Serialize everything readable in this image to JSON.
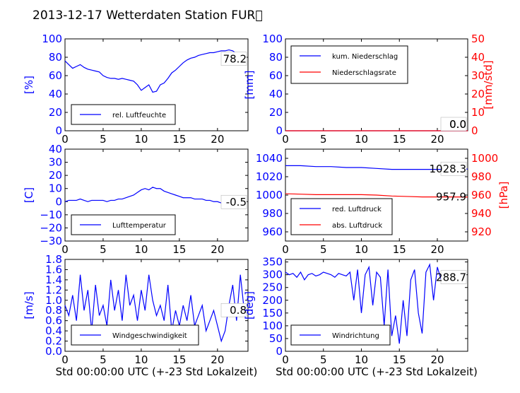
{
  "title": "2013-12-17 Wetterdaten Station FUR\u0000",
  "colors": {
    "blue": "#0000ff",
    "red": "#ff0000",
    "axis": "#000000",
    "frame": "#000000"
  },
  "chart_data": [
    {
      "type": "line",
      "id": "humidity",
      "xlim": [
        0,
        24
      ],
      "xticks": [
        "0",
        "5",
        "10",
        "15",
        "20"
      ],
      "ylim": [
        0,
        100
      ],
      "yticks": [
        "0",
        "20",
        "40",
        "60",
        "80",
        "100"
      ],
      "ylabel": "[%]",
      "xlabel": "",
      "last_value_label": "78.2",
      "legend": {
        "placement": "lower-left"
      },
      "series": [
        {
          "name": "rel. Luftfeuchte",
          "color": "#0000ff",
          "x": [
            0,
            0.5,
            1,
            1.5,
            2,
            2.5,
            3,
            3.5,
            4,
            4.5,
            5,
            5.5,
            6,
            6.5,
            7,
            7.5,
            8,
            8.5,
            9,
            9.5,
            10,
            10.5,
            11,
            11.5,
            12,
            12.5,
            13,
            13.5,
            14,
            14.5,
            15,
            15.5,
            16,
            16.5,
            17,
            17.5,
            18,
            18.5,
            19,
            19.5,
            20,
            20.5,
            21,
            21.5,
            22,
            22.5,
            23,
            23.5
          ],
          "values": [
            76,
            72,
            68,
            70,
            72,
            69,
            67,
            66,
            65,
            64,
            60,
            58,
            57,
            57,
            56,
            57,
            56,
            55,
            54,
            50,
            44,
            47,
            50,
            42,
            43,
            50,
            52,
            57,
            63,
            66,
            70,
            74,
            77,
            79,
            80,
            82,
            83,
            84,
            85,
            85,
            86,
            87,
            87,
            88,
            87,
            84,
            80,
            78
          ]
        }
      ]
    },
    {
      "type": "line",
      "id": "precipitation",
      "xlim": [
        0,
        24
      ],
      "xticks": [
        "0",
        "5",
        "10",
        "15",
        "20"
      ],
      "ylim": [
        0,
        100
      ],
      "yticks": [
        "0",
        "20",
        "40",
        "60",
        "80",
        "100"
      ],
      "ylabel": "[mm]",
      "y2lim": [
        0,
        50
      ],
      "y2ticks": [
        "0",
        "10",
        "20",
        "30",
        "40",
        "50"
      ],
      "y2label": "[mm/std]",
      "last_value_label": "0.0",
      "last_value_label2": "0.0",
      "legend": {
        "placement": "upper-left"
      },
      "series": [
        {
          "name": "kum. Niederschlag",
          "color": "#0000ff",
          "axis": "left",
          "x": [
            0,
            24
          ],
          "values": [
            0,
            0
          ]
        },
        {
          "name": "Niederschlagsrate",
          "color": "#ff0000",
          "axis": "right",
          "x": [
            0,
            24
          ],
          "values": [
            0,
            0
          ]
        }
      ]
    },
    {
      "type": "line",
      "id": "temperature",
      "xlim": [
        0,
        24
      ],
      "xticks": [
        "0",
        "5",
        "10",
        "15",
        "20"
      ],
      "ylim": [
        -30,
        40
      ],
      "yticks": [
        "−30",
        "−20",
        "−10",
        "0",
        "10",
        "20",
        "30",
        "40"
      ],
      "ylabel": "[C]",
      "last_value_label": "-0.5",
      "legend": {
        "placement": "lower-left"
      },
      "series": [
        {
          "name": "Lufttemperatur",
          "color": "#0000ff",
          "x": [
            0,
            0.5,
            1,
            1.5,
            2,
            2.5,
            3,
            3.5,
            4,
            4.5,
            5,
            5.5,
            6,
            6.5,
            7,
            7.5,
            8,
            8.5,
            9,
            9.5,
            10,
            10.5,
            11,
            11.5,
            12,
            12.5,
            13,
            13.5,
            14,
            14.5,
            15,
            15.5,
            16,
            16.5,
            17,
            17.5,
            18,
            18.5,
            19,
            19.5,
            20,
            20.5,
            21,
            21.5,
            22,
            22.5,
            23,
            23.5
          ],
          "values": [
            0,
            1,
            1,
            1,
            2,
            1,
            0,
            1,
            1,
            1,
            1,
            0,
            1,
            1,
            2,
            2,
            3,
            4,
            5,
            7,
            9,
            10,
            9,
            11,
            10,
            10,
            8,
            7,
            6,
            5,
            4,
            3,
            3,
            3,
            2,
            2,
            2,
            1,
            1,
            0,
            0,
            -1,
            -1,
            -1,
            -1,
            -1,
            -1,
            -0.5
          ]
        }
      ]
    },
    {
      "type": "line",
      "id": "pressure",
      "xlim": [
        0,
        24
      ],
      "xticks": [
        "0",
        "5",
        "10",
        "15",
        "20"
      ],
      "ylim": [
        950,
        1050
      ],
      "yticks": [
        "960",
        "980",
        "1000",
        "1020",
        "1040"
      ],
      "y2lim": [
        910,
        1010
      ],
      "y2ticks": [
        "920",
        "940",
        "960",
        "980",
        "1000"
      ],
      "y2label": "[hPa]",
      "last_value_label": "1028.3",
      "last_value_label2": "957.9",
      "legend": {
        "placement": "lower-left"
      },
      "series": [
        {
          "name": "red. Luftdruck",
          "color": "#0000ff",
          "axis": "left",
          "x": [
            0,
            2,
            4,
            6,
            8,
            10,
            12,
            14,
            16,
            18,
            20,
            22,
            24
          ],
          "values": [
            1032,
            1032,
            1031,
            1031,
            1030,
            1030,
            1029,
            1028,
            1028,
            1028,
            1028,
            1028,
            1028.3
          ]
        },
        {
          "name": "abs. Luftdruck",
          "color": "#ff0000",
          "axis": "right",
          "x": [
            0,
            2,
            4,
            6,
            8,
            10,
            12,
            14,
            16,
            18,
            20,
            22,
            24
          ],
          "values": [
            961.5,
            961,
            960.5,
            960.5,
            960.5,
            960.5,
            960,
            959,
            958.5,
            958,
            958,
            958,
            957.9
          ]
        }
      ]
    },
    {
      "type": "line",
      "id": "wind-speed",
      "xlim": [
        0,
        24
      ],
      "xticks": [
        "0",
        "5",
        "10",
        "15",
        "20"
      ],
      "ylim": [
        0,
        1.8
      ],
      "yticks": [
        "0.0",
        "0.2",
        "0.4",
        "0.6",
        "0.8",
        "1.0",
        "1.2",
        "1.4",
        "1.6",
        "1.8"
      ],
      "ylabel": "[m/s]",
      "xlabel": "Std 00:00:00 UTC (+-23 Std Lokalzeit)",
      "last_value_label": "0.8",
      "legend": {
        "placement": "lower-left"
      },
      "series": [
        {
          "name": "Windgeschwindigkeit",
          "color": "#0000ff",
          "x": [
            0,
            0.5,
            1,
            1.5,
            2,
            2.5,
            3,
            3.5,
            4,
            4.5,
            5,
            5.5,
            6,
            6.5,
            7,
            7.5,
            8,
            8.5,
            9,
            9.5,
            10,
            10.5,
            11,
            11.5,
            12,
            12.5,
            13,
            13.5,
            14,
            14.5,
            15,
            15.5,
            16,
            16.5,
            17,
            17.5,
            18,
            18.5,
            19,
            19.5,
            20,
            20.5,
            21,
            21.5,
            22,
            22.5,
            23,
            23.5
          ],
          "values": [
            0.9,
            0.7,
            1.1,
            0.6,
            1.5,
            0.8,
            1.2,
            0.4,
            1.3,
            0.7,
            0.9,
            0.5,
            1.4,
            0.8,
            1.2,
            0.6,
            1.5,
            0.9,
            1.1,
            0.6,
            1.2,
            0.8,
            1.5,
            1.0,
            0.7,
            0.9,
            0.6,
            1.3,
            0.4,
            0.8,
            0.5,
            0.9,
            0.6,
            1.1,
            0.5,
            0.7,
            0.9,
            0.4,
            0.6,
            0.8,
            0.5,
            0.2,
            0.4,
            0.9,
            1.3,
            0.6,
            1.5,
            0.8
          ]
        }
      ]
    },
    {
      "type": "line",
      "id": "wind-direction",
      "xlim": [
        0,
        24
      ],
      "xticks": [
        "0",
        "5",
        "10",
        "15",
        "20"
      ],
      "ylim": [
        0,
        360
      ],
      "yticks": [
        "0",
        "50",
        "100",
        "150",
        "200",
        "250",
        "300",
        "350"
      ],
      "ylabel": "[deg]",
      "xlabel": "Std 00:00:00 UTC (+-23 Std Lokalzeit)",
      "last_value_label": "288.7",
      "legend": {
        "placement": "lower-left"
      },
      "series": [
        {
          "name": "Windrichtung",
          "color": "#0000ff",
          "x": [
            0,
            0.5,
            1,
            1.5,
            2,
            2.5,
            3,
            3.5,
            4,
            4.5,
            5,
            5.5,
            6,
            6.5,
            7,
            7.5,
            8,
            8.5,
            9,
            9.5,
            10,
            10.5,
            11,
            11.5,
            12,
            12.5,
            13,
            13.5,
            14,
            14.5,
            15,
            15.5,
            16,
            16.5,
            17,
            17.5,
            18,
            18.5,
            19,
            19.5,
            20,
            20.5,
            21,
            21.5,
            22,
            22.5,
            23,
            23.5
          ],
          "values": [
            310,
            300,
            305,
            290,
            310,
            280,
            300,
            305,
            295,
            300,
            310,
            305,
            300,
            290,
            305,
            300,
            295,
            310,
            200,
            320,
            150,
            300,
            330,
            180,
            310,
            290,
            100,
            320,
            60,
            140,
            30,
            200,
            60,
            280,
            320,
            150,
            70,
            310,
            340,
            200,
            330,
            280,
            300,
            310,
            300,
            290,
            295,
            289
          ]
        }
      ]
    }
  ]
}
